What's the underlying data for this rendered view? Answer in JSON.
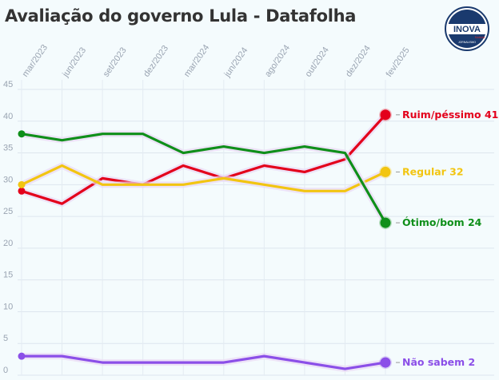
{
  "title": "Avaliação do governo Lula - Datafolha",
  "logo": {
    "text": "INOVA",
    "subtext": "Notícia",
    "ring_text": "JORNALISMO",
    "colors": {
      "ring": "#1a3a6e",
      "accent": "#d6262c"
    }
  },
  "chart_data": {
    "type": "line",
    "x_ticks": [
      "mar/2023",
      "jun/2023",
      "set/2023",
      "dez/2023",
      "mar/2024",
      "jun/2024",
      "ago/2024",
      "out/2024",
      "dez/2024",
      "fev/2025"
    ],
    "x": [
      "mar/2023",
      "jun/2023",
      "set/2023",
      "dez/2023",
      "mar/2024",
      "jun/2024",
      "ago/2024",
      "out/2024",
      "dez/2024",
      "fev/2025"
    ],
    "ylim": [
      0,
      45
    ],
    "y_ticks": [
      0,
      5,
      10,
      15,
      20,
      25,
      30,
      35,
      40,
      45
    ],
    "grid": true,
    "series": [
      {
        "name": "Ruim/péssimo",
        "color": "#e3001b",
        "values": [
          29,
          27,
          31,
          30,
          33,
          31,
          33,
          32,
          34,
          41
        ],
        "end_label": "Ruim/péssimo 41"
      },
      {
        "name": "Regular",
        "color": "#f2c511",
        "values": [
          30,
          33,
          30,
          30,
          30,
          31,
          30,
          29,
          29,
          32
        ],
        "end_label": "Regular 32"
      },
      {
        "name": "Ótimo/bom",
        "color": "#0f8f1a",
        "values": [
          38,
          37,
          38,
          38,
          35,
          36,
          35,
          36,
          35,
          24
        ],
        "end_label": "Ótimo/bom 24"
      },
      {
        "name": "Não sabem",
        "color": "#8b4fe8",
        "values": [
          3,
          3,
          2,
          2,
          2,
          2,
          3,
          2,
          1,
          2
        ],
        "end_label": "Não sabem 2"
      }
    ]
  }
}
